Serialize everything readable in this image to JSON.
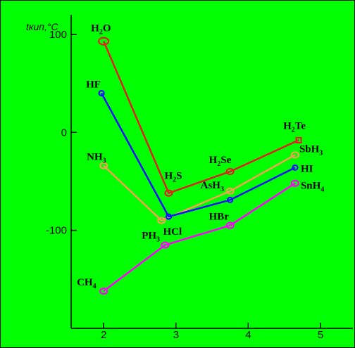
{
  "chart_data": {
    "type": "line",
    "ylabel": "tкип,°C",
    "xticks": [
      2,
      3,
      4,
      5
    ],
    "yticks": [
      100,
      0,
      -100
    ],
    "xlim": [
      1.55,
      5.45
    ],
    "ylim": [
      -200,
      120
    ],
    "grid": false,
    "legend": "none",
    "series": [
      {
        "id": "group4",
        "color": "#ff00ff",
        "points": [
          {
            "x": 2,
            "y": -162,
            "label": "CH",
            "sub": "4"
          },
          {
            "x": 2.85,
            "y": -115,
            "label": "",
            "sub": ""
          },
          {
            "x": 3.75,
            "y": -95,
            "label": "",
            "sub": ""
          },
          {
            "x": 4.65,
            "y": -52,
            "label": "SnH",
            "sub": "4"
          }
        ]
      },
      {
        "id": "group5",
        "color": "#f4a050",
        "points": [
          {
            "x": 2,
            "y": -34,
            "label": "NH",
            "sub": "3"
          },
          {
            "x": 2.8,
            "y": -90,
            "label": "PH",
            "sub": "3"
          },
          {
            "x": 3.75,
            "y": -60,
            "label": "AsH",
            "sub": "3"
          },
          {
            "x": 4.65,
            "y": -23,
            "label": "SbH",
            "sub": "3"
          }
        ]
      },
      {
        "id": "group6",
        "color": "#e02020",
        "points": [
          {
            "x": 2,
            "y": 93,
            "label": "H",
            "sub": "2",
            "label2": "O"
          },
          {
            "x": 2.9,
            "y": -62,
            "label": "H",
            "sub": "2",
            "label2": "S"
          },
          {
            "x": 3.75,
            "y": -40,
            "label": "H",
            "sub": "2",
            "label2": "Se"
          },
          {
            "x": 4.7,
            "y": -8,
            "label": "H",
            "sub": "2",
            "label2": "Te"
          }
        ]
      },
      {
        "id": "group7",
        "color": "#1010ff",
        "points": [
          {
            "x": 1.97,
            "y": 40,
            "label": "HF",
            "sub": ""
          },
          {
            "x": 2.9,
            "y": -86,
            "label": "HCl",
            "sub": ""
          },
          {
            "x": 3.75,
            "y": -69,
            "label": "HBr",
            "sub": ""
          },
          {
            "x": 4.65,
            "y": -36,
            "label": "HI",
            "sub": ""
          }
        ]
      }
    ]
  }
}
